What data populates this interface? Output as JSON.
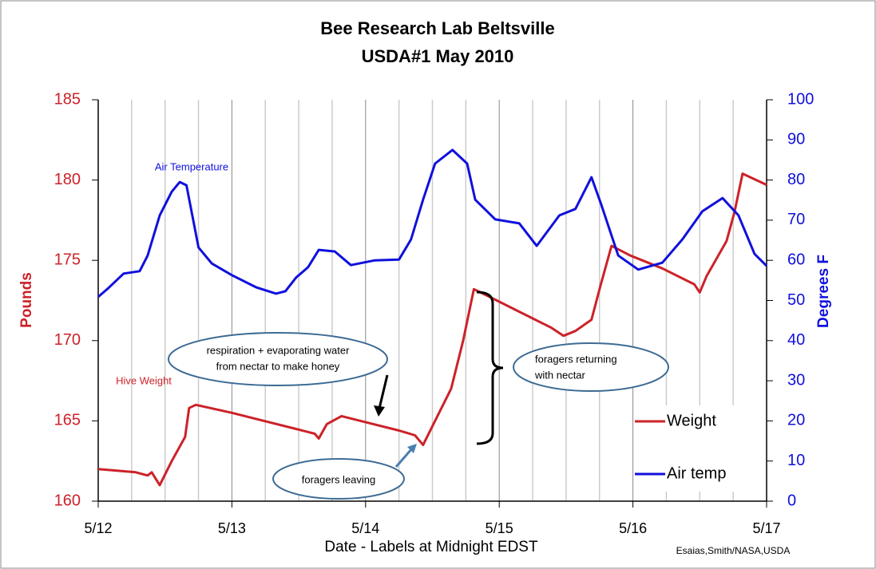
{
  "chart_data": {
    "type": "line",
    "title": "Bee Research Lab Beltsville",
    "subtitle": "USDA#1  May 2010",
    "x_label": "Date - Labels at Midnight EDST",
    "y_label": "Pounds",
    "y2_label": "Degrees  F",
    "credit": "Esaias,Smith/NASA,USDA",
    "xlim": [
      12,
      17
    ],
    "xticks": [
      {
        "value": 12,
        "label": "5/12"
      },
      {
        "value": 13,
        "label": "5/13"
      },
      {
        "value": 14,
        "label": "5/14"
      },
      {
        "value": 15,
        "label": "5/15"
      },
      {
        "value": 16,
        "label": "5/16"
      },
      {
        "value": 17,
        "label": "5/17"
      }
    ],
    "xminorticks": [
      12.25,
      12.5,
      12.75,
      13.25,
      13.5,
      13.75,
      14.25,
      14.5,
      14.75,
      15.25,
      15.5,
      15.75,
      16.25,
      16.5,
      16.75
    ],
    "ylim": [
      160,
      185
    ],
    "yticks": [
      160,
      165,
      170,
      175,
      180,
      185
    ],
    "y2lim": [
      0,
      100
    ],
    "y2ticks": [
      0,
      10,
      20,
      30,
      40,
      50,
      60,
      70,
      80,
      90,
      100
    ],
    "grid": true,
    "legend": "lower right",
    "series": [
      {
        "name": "Weight",
        "color": "#cc2229",
        "x": [
          12.0,
          12.28,
          12.37,
          12.4,
          12.46,
          12.55,
          12.65,
          12.68,
          12.73,
          13.0,
          13.24,
          13.48,
          13.62,
          13.65,
          13.71,
          13.82,
          14.01,
          14.25,
          14.37,
          14.43,
          14.52,
          14.64,
          14.73,
          14.81,
          14.91,
          15.15,
          15.39,
          15.48,
          15.57,
          15.69,
          15.76,
          15.84,
          15.98,
          16.22,
          16.46,
          16.5,
          16.55,
          16.7,
          16.76,
          16.82,
          17.0
        ],
        "values": [
          162.0,
          161.8,
          161.6,
          161.8,
          161.0,
          162.5,
          164.0,
          165.8,
          166.0,
          165.5,
          165.0,
          164.5,
          164.2,
          163.9,
          164.8,
          165.3,
          164.9,
          164.4,
          164.1,
          163.5,
          165.0,
          167.0,
          170.0,
          173.2,
          172.8,
          171.8,
          170.8,
          170.3,
          170.6,
          171.3,
          173.5,
          175.9,
          175.3,
          174.5,
          173.5,
          173.0,
          174.0,
          176.2,
          178.0,
          180.4,
          179.7
        ]
      },
      {
        "name": "Air temp",
        "color": "#1010dd",
        "axis": "y2",
        "x": [
          12.0,
          12.07,
          12.19,
          12.31,
          12.37,
          12.46,
          12.55,
          12.61,
          12.66,
          12.75,
          12.85,
          13.0,
          13.18,
          13.33,
          13.4,
          13.48,
          13.57,
          13.65,
          13.77,
          13.89,
          14.07,
          14.25,
          14.34,
          14.43,
          14.52,
          14.65,
          14.76,
          14.82,
          14.97,
          15.15,
          15.28,
          15.45,
          15.57,
          15.69,
          15.76,
          15.89,
          16.04,
          16.22,
          16.37,
          16.52,
          16.67,
          16.79,
          16.91,
          17.0
        ],
        "values": [
          50.9,
          52.9,
          56.7,
          57.3,
          61.2,
          71.2,
          77.1,
          79.5,
          78.7,
          63.2,
          59.2,
          56.3,
          53.3,
          51.7,
          52.3,
          55.7,
          58.3,
          62.6,
          62.2,
          58.8,
          60.0,
          60.2,
          65.2,
          75.1,
          84.1,
          87.5,
          84.1,
          75.1,
          70.2,
          69.2,
          63.6,
          71.2,
          72.8,
          80.7,
          74.2,
          61.2,
          57.7,
          59.4,
          65.2,
          72.2,
          75.5,
          71.2,
          61.6,
          58.6
        ]
      }
    ],
    "annotations": [
      "Air Temperature",
      "Hive Weight",
      "respiration + evaporating water",
      "from nectar to make honey",
      "foragers leaving",
      "foragers returning",
      "with nectar"
    ]
  }
}
